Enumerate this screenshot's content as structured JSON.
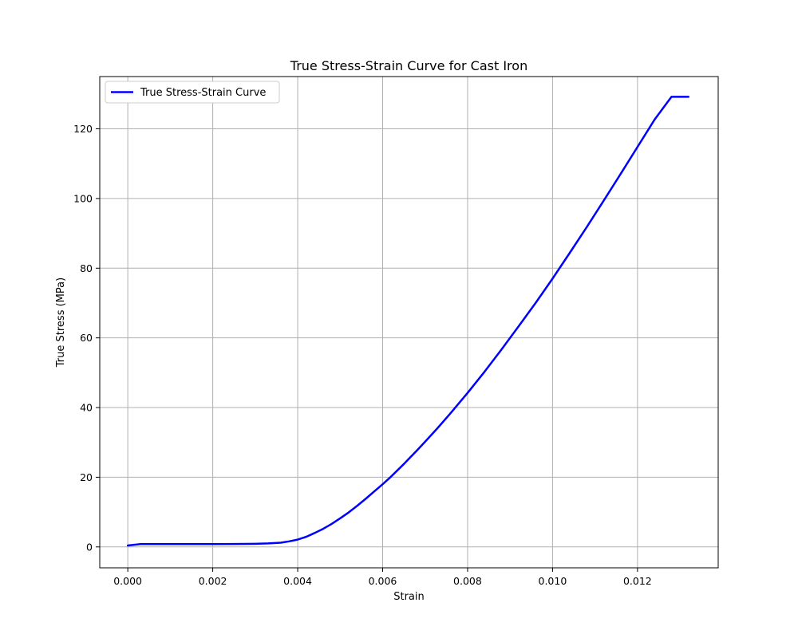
{
  "chart_data": {
    "type": "line",
    "title": "True Stress-Strain Curve for Cast Iron",
    "xlabel": "Strain",
    "ylabel": "True Stress (MPa)",
    "xlim": [
      -0.00066,
      0.0139
    ],
    "ylim": [
      -6,
      135
    ],
    "x_ticks": [
      0.0,
      0.002,
      0.004,
      0.006,
      0.008,
      0.01,
      0.012
    ],
    "x_tick_labels": [
      "0.000",
      "0.002",
      "0.004",
      "0.006",
      "0.008",
      "0.010",
      "0.012"
    ],
    "y_ticks": [
      0,
      20,
      40,
      60,
      80,
      100,
      120
    ],
    "y_tick_labels": [
      "0",
      "20",
      "40",
      "60",
      "80",
      "100",
      "120"
    ],
    "grid": true,
    "legend_position": "upper left",
    "series": [
      {
        "name": "True Stress-Strain Curve",
        "color": "#0000ff",
        "x": [
          0.0,
          0.0003,
          0.0005,
          0.001,
          0.0015,
          0.002,
          0.0025,
          0.003,
          0.0033,
          0.0036,
          0.0038,
          0.004,
          0.0042,
          0.0044,
          0.0046,
          0.0048,
          0.005,
          0.0052,
          0.0054,
          0.0056,
          0.0058,
          0.006,
          0.0062,
          0.0065,
          0.0068,
          0.007,
          0.0073,
          0.0076,
          0.008,
          0.0084,
          0.0088,
          0.0092,
          0.0096,
          0.01,
          0.0104,
          0.0108,
          0.0112,
          0.0116,
          0.012,
          0.0124,
          0.0128,
          0.0132
        ],
        "y": [
          0.4,
          0.8,
          0.8,
          0.8,
          0.8,
          0.8,
          0.85,
          0.9,
          1.0,
          1.2,
          1.6,
          2.1,
          2.9,
          4.0,
          5.2,
          6.6,
          8.2,
          9.9,
          11.8,
          13.8,
          15.9,
          18.0,
          20.2,
          23.8,
          27.6,
          30.2,
          34.2,
          38.4,
          44.2,
          50.3,
          56.7,
          63.3,
          70.0,
          77.0,
          84.3,
          91.7,
          99.3,
          107.0,
          114.8,
          122.6,
          129.2,
          129.2
        ]
      }
    ]
  }
}
